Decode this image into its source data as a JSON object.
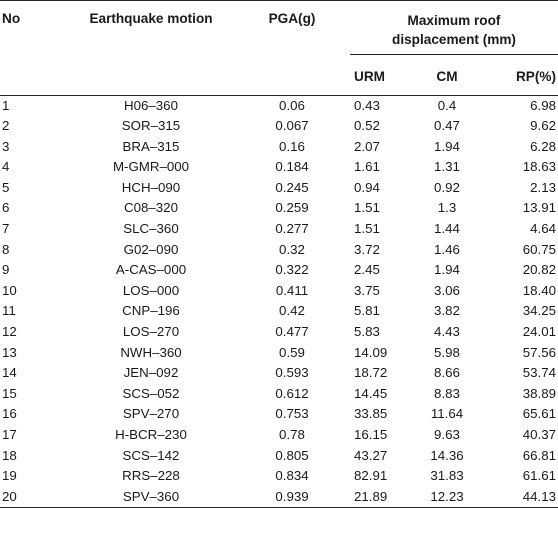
{
  "table": {
    "headers": {
      "no": "No",
      "motion": "Earthquake motion",
      "pga": "PGA(g)",
      "max_line1": "Maximum roof",
      "max_line2": "displacement (mm)",
      "urm": "URM",
      "cm": "CM",
      "rp": "RP(%)"
    },
    "rows": [
      {
        "no": "1",
        "motion": "H06–360",
        "pga": "0.06",
        "urm": "0.43",
        "cm": "0.4",
        "rp": "6.98"
      },
      {
        "no": "2",
        "motion": "SOR–315",
        "pga": "0.067",
        "urm": "0.52",
        "cm": "0.47",
        "rp": "9.62"
      },
      {
        "no": "3",
        "motion": "BRA–315",
        "pga": "0.16",
        "urm": "2.07",
        "cm": "1.94",
        "rp": "6.28"
      },
      {
        "no": "4",
        "motion": "M-GMR–000",
        "pga": "0.184",
        "urm": "1.61",
        "cm": "1.31",
        "rp": "18.63"
      },
      {
        "no": "5",
        "motion": "HCH–090",
        "pga": "0.245",
        "urm": "0.94",
        "cm": "0.92",
        "rp": "2.13"
      },
      {
        "no": "6",
        "motion": "C08–320",
        "pga": "0.259",
        "urm": "1.51",
        "cm": "1.3",
        "rp": "13.91"
      },
      {
        "no": "7",
        "motion": "SLC–360",
        "pga": "0.277",
        "urm": "1.51",
        "cm": "1.44",
        "rp": "4.64"
      },
      {
        "no": "8",
        "motion": "G02–090",
        "pga": "0.32",
        "urm": "3.72",
        "cm": "1.46",
        "rp": "60.75"
      },
      {
        "no": "9",
        "motion": "A-CAS–000",
        "pga": "0.322",
        "urm": "2.45",
        "cm": "1.94",
        "rp": "20.82"
      },
      {
        "no": "10",
        "motion": "LOS–000",
        "pga": "0.411",
        "urm": "3.75",
        "cm": "3.06",
        "rp": "18.40"
      },
      {
        "no": "11",
        "motion": "CNP–196",
        "pga": "0.42",
        "urm": "5.81",
        "cm": "3.82",
        "rp": "34.25"
      },
      {
        "no": "12",
        "motion": "LOS–270",
        "pga": "0.477",
        "urm": "5.83",
        "cm": "4.43",
        "rp": "24.01"
      },
      {
        "no": "13",
        "motion": "NWH–360",
        "pga": "0.59",
        "urm": "14.09",
        "cm": "5.98",
        "rp": "57.56"
      },
      {
        "no": "14",
        "motion": "JEN–092",
        "pga": "0.593",
        "urm": "18.72",
        "cm": "8.66",
        "rp": "53.74"
      },
      {
        "no": "15",
        "motion": "SCS–052",
        "pga": "0.612",
        "urm": "14.45",
        "cm": "8.83",
        "rp": "38.89"
      },
      {
        "no": "16",
        "motion": "SPV–270",
        "pga": "0.753",
        "urm": "33.85",
        "cm": "11.64",
        "rp": "65.61"
      },
      {
        "no": "17",
        "motion": "H-BCR–230",
        "pga": "0.78",
        "urm": "16.15",
        "cm": "9.63",
        "rp": "40.37"
      },
      {
        "no": "18",
        "motion": "SCS–142",
        "pga": "0.805",
        "urm": "43.27",
        "cm": "14.36",
        "rp": "66.81"
      },
      {
        "no": "19",
        "motion": "RRS–228",
        "pga": "0.834",
        "urm": "82.91",
        "cm": "31.83",
        "rp": "61.61"
      },
      {
        "no": "20",
        "motion": "SPV–360",
        "pga": "0.939",
        "urm": "21.89",
        "cm": "12.23",
        "rp": "44.13"
      }
    ]
  }
}
